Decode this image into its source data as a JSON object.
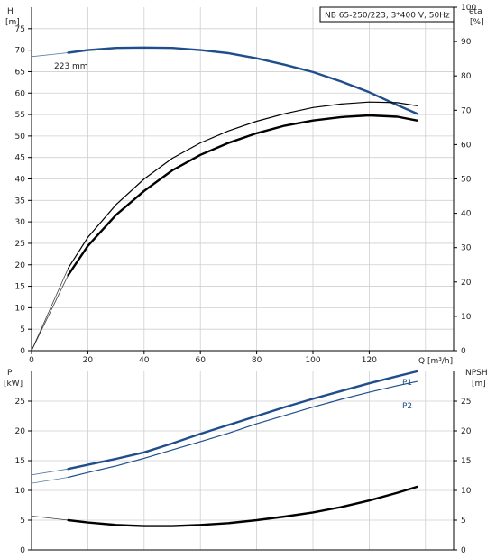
{
  "chart_data": [
    {
      "type": "line",
      "title": "NB 65-250/223, 3*400 V, 50Hz",
      "xlabel": "Q [m³/h]",
      "xlim": [
        0,
        150
      ],
      "x_ticks": [
        "0",
        "20",
        "40",
        "60",
        "80",
        "100",
        "120"
      ],
      "left_axis": {
        "label_top": "H",
        "label_unit": "[m]",
        "ylim": [
          0,
          80
        ],
        "ticks": [
          "0",
          "5",
          "10",
          "15",
          "20",
          "25",
          "30",
          "35",
          "40",
          "45",
          "50",
          "55",
          "60",
          "65",
          "70",
          "75"
        ]
      },
      "right_axis": {
        "label_top": "eta",
        "label_unit": "[%]",
        "ylim": [
          0,
          100
        ],
        "ticks": [
          "0",
          "10",
          "20",
          "30",
          "40",
          "50",
          "60",
          "70",
          "80",
          "90",
          "100"
        ]
      },
      "grid": true,
      "annotations": [
        "223 mm"
      ],
      "series": [
        {
          "color": "#1f4e8c",
          "axis": "left",
          "style": "thick",
          "x": [
            0,
            13,
            20,
            30,
            40,
            50,
            60,
            70,
            80,
            90,
            100,
            110,
            120,
            130,
            137
          ],
          "y": [
            68.5,
            69.4,
            70.0,
            70.5,
            70.6,
            70.5,
            70.0,
            69.3,
            68.1,
            66.6,
            64.9,
            62.7,
            60.2,
            57.2,
            55.2
          ],
          "dashed_until": 13
        },
        {
          "color": "#000000",
          "axis": "right",
          "style": "thin",
          "x": [
            0,
            13,
            20,
            30,
            40,
            50,
            60,
            70,
            80,
            90,
            100,
            110,
            120,
            130,
            137
          ],
          "y": [
            0,
            24,
            33,
            42.5,
            50,
            56,
            60.5,
            64,
            66.8,
            69,
            70.8,
            71.8,
            72.4,
            72.2,
            71.3
          ],
          "dashed_until": 13
        },
        {
          "color": "#000000",
          "axis": "right",
          "style": "thick",
          "x": [
            0,
            13,
            20,
            30,
            40,
            50,
            60,
            70,
            80,
            90,
            100,
            110,
            120,
            130,
            137
          ],
          "y": [
            0,
            22,
            30.5,
            39.5,
            46.5,
            52.5,
            57,
            60.5,
            63.3,
            65.5,
            67,
            68,
            68.5,
            68.1,
            67.0
          ],
          "dashed_until": 13
        }
      ]
    },
    {
      "type": "line",
      "xlim": [
        0,
        150
      ],
      "left_axis": {
        "label_top": "P",
        "label_unit": "[kW]",
        "ylim": [
          0,
          30
        ],
        "ticks": [
          "0",
          "5",
          "10",
          "15",
          "20",
          "25"
        ]
      },
      "right_axis": {
        "label_top": "NPSH",
        "label_unit": "[m]",
        "ylim": [
          0,
          30
        ],
        "ticks": [
          "0",
          "5",
          "10",
          "15",
          "20",
          "25"
        ]
      },
      "grid": true,
      "series": [
        {
          "name": "P1",
          "color": "#1f4e8c",
          "axis": "left",
          "style": "thick",
          "x": [
            0,
            13,
            20,
            30,
            40,
            50,
            60,
            70,
            80,
            90,
            100,
            110,
            120,
            130,
            137
          ],
          "y": [
            12.6,
            13.6,
            14.3,
            15.3,
            16.4,
            17.9,
            19.5,
            21.0,
            22.5,
            24.0,
            25.4,
            26.7,
            28.0,
            29.2,
            30.0
          ],
          "dashed_until": 13
        },
        {
          "name": "P2",
          "color": "#1f4e8c",
          "axis": "left",
          "style": "thin",
          "x": [
            0,
            13,
            20,
            30,
            40,
            50,
            60,
            70,
            80,
            90,
            100,
            110,
            120,
            130,
            137
          ],
          "y": [
            11.2,
            12.2,
            13.0,
            14.1,
            15.4,
            16.8,
            18.2,
            19.6,
            21.2,
            22.6,
            24.0,
            25.3,
            26.5,
            27.6,
            28.3
          ],
          "dashed_until": 13
        },
        {
          "color": "#000000",
          "axis": "right",
          "style": "thick",
          "x": [
            0,
            13,
            20,
            30,
            40,
            50,
            60,
            70,
            80,
            90,
            100,
            110,
            120,
            130,
            137
          ],
          "y": [
            5.7,
            5.0,
            4.6,
            4.2,
            4.0,
            4.0,
            4.2,
            4.5,
            5.0,
            5.6,
            6.3,
            7.2,
            8.3,
            9.6,
            10.6
          ],
          "dashed_until": 13
        }
      ]
    }
  ]
}
